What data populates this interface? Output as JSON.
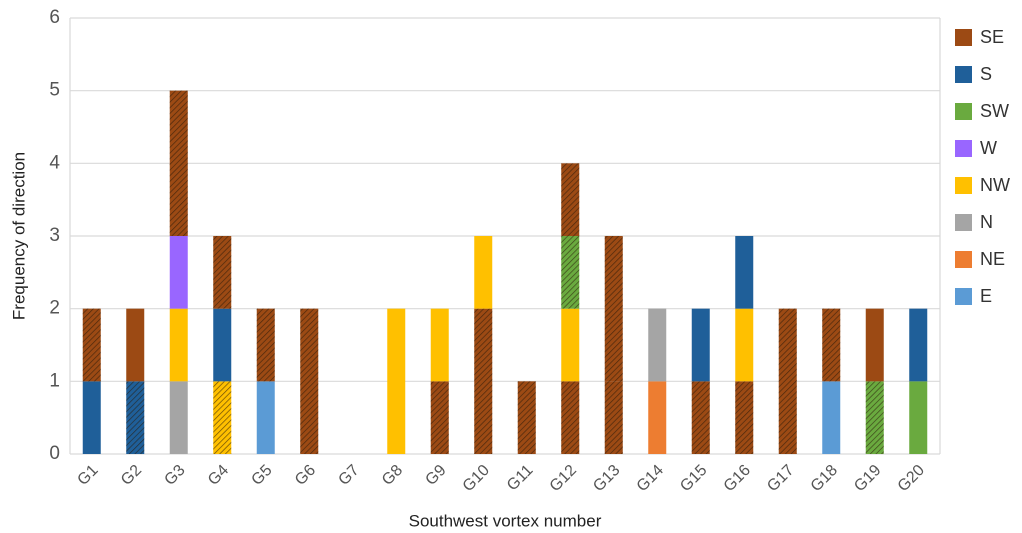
{
  "chart_data": {
    "type": "stacked-bar",
    "x_label": "Southwest vortex number",
    "y_label": "Frequency of direction",
    "categories": [
      "G1",
      "G2",
      "G3",
      "G4",
      "G5",
      "G6",
      "G7",
      "G8",
      "G9",
      "G10",
      "G11",
      "G12",
      "G13",
      "G14",
      "G15",
      "G16",
      "G17",
      "G18",
      "G19",
      "G20"
    ],
    "series": [
      {
        "name": "SE",
        "color": "#9c4a14"
      },
      {
        "name": "S",
        "color": "#1f5f99"
      },
      {
        "name": "SW",
        "color": "#6aaa3f"
      },
      {
        "name": "W",
        "color": "#9966ff"
      },
      {
        "name": "NW",
        "color": "#ffc000"
      },
      {
        "name": "N",
        "color": "#a5a5a5"
      },
      {
        "name": "NE",
        "color": "#ed7d31"
      },
      {
        "name": "E",
        "color": "#5b9bd5"
      }
    ],
    "segments": [
      [
        {
          "series": 1,
          "value": 1,
          "hatched": false
        },
        {
          "series": 0,
          "value": 1,
          "hatched": true
        }
      ],
      [
        {
          "series": 1,
          "value": 1,
          "hatched": true
        },
        {
          "series": 0,
          "value": 1,
          "hatched": false
        }
      ],
      [
        {
          "series": 5,
          "value": 1,
          "hatched": false
        },
        {
          "series": 4,
          "value": 1,
          "hatched": false
        },
        {
          "series": 3,
          "value": 1,
          "hatched": false
        },
        {
          "series": 0,
          "value": 2,
          "hatched": true
        }
      ],
      [
        {
          "series": 4,
          "value": 1,
          "hatched": true
        },
        {
          "series": 1,
          "value": 1,
          "hatched": false
        },
        {
          "series": 0,
          "value": 1,
          "hatched": true
        }
      ],
      [
        {
          "series": 7,
          "value": 1,
          "hatched": false
        },
        {
          "series": 0,
          "value": 1,
          "hatched": true
        }
      ],
      [
        {
          "series": 0,
          "value": 2,
          "hatched": true
        }
      ],
      [],
      [
        {
          "series": 4,
          "value": 2,
          "hatched": false
        }
      ],
      [
        {
          "series": 0,
          "value": 1,
          "hatched": true
        },
        {
          "series": 4,
          "value": 1,
          "hatched": false
        }
      ],
      [
        {
          "series": 0,
          "value": 2,
          "hatched": true
        },
        {
          "series": 4,
          "value": 1,
          "hatched": false
        }
      ],
      [
        {
          "series": 0,
          "value": 1,
          "hatched": true
        }
      ],
      [
        {
          "series": 0,
          "value": 1,
          "hatched": true
        },
        {
          "series": 4,
          "value": 1,
          "hatched": false
        },
        {
          "series": 2,
          "value": 1,
          "hatched": true
        },
        {
          "series": 0,
          "value": 1,
          "hatched": true
        }
      ],
      [
        {
          "series": 0,
          "value": 1,
          "hatched": true
        },
        {
          "series": 0,
          "value": 2,
          "hatched": true
        }
      ],
      [
        {
          "series": 6,
          "value": 1,
          "hatched": false
        },
        {
          "series": 5,
          "value": 1,
          "hatched": false
        }
      ],
      [
        {
          "series": 0,
          "value": 1,
          "hatched": true
        },
        {
          "series": 1,
          "value": 1,
          "hatched": false
        }
      ],
      [
        {
          "series": 0,
          "value": 1,
          "hatched": true
        },
        {
          "series": 4,
          "value": 1,
          "hatched": false
        },
        {
          "series": 1,
          "value": 1,
          "hatched": false
        }
      ],
      [
        {
          "series": 0,
          "value": 2,
          "hatched": true
        }
      ],
      [
        {
          "series": 7,
          "value": 1,
          "hatched": false
        },
        {
          "series": 0,
          "value": 1,
          "hatched": true
        }
      ],
      [
        {
          "series": 2,
          "value": 1,
          "hatched": true
        },
        {
          "series": 0,
          "value": 1,
          "hatched": false
        }
      ],
      [
        {
          "series": 2,
          "value": 1,
          "hatched": false
        },
        {
          "series": 1,
          "value": 1,
          "hatched": false
        }
      ]
    ],
    "ylim": [
      0,
      6
    ],
    "yticks": [
      0,
      1,
      2,
      3,
      4,
      5,
      6
    ],
    "grid": true,
    "legend": "right"
  }
}
